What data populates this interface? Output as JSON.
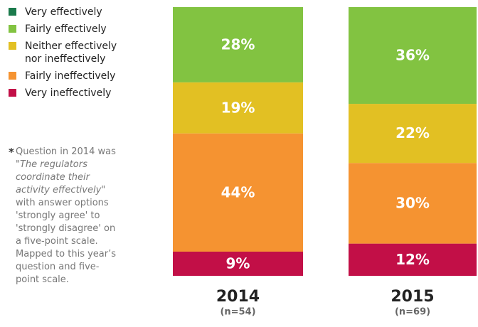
{
  "chart_data": {
    "type": "stacked_bar",
    "categories": [
      "2014",
      "2015"
    ],
    "category_notes": [
      "(n=54)",
      "(n=69)"
    ],
    "ylim": [
      0,
      100
    ],
    "series": [
      {
        "name": "Very effectively",
        "color": "#1b7a4c",
        "values": [
          0,
          0
        ]
      },
      {
        "name": "Fairly effectively",
        "color": "#82c341",
        "values": [
          28,
          36
        ],
        "value_labels": [
          "28%",
          "36%"
        ]
      },
      {
        "name": "Neither effectively nor ineffectively",
        "color": "#e2c023",
        "values": [
          19,
          22
        ],
        "value_labels": [
          "19%",
          "22%"
        ]
      },
      {
        "name": "Fairly ineffectively",
        "color": "#f59331",
        "values": [
          44,
          30
        ],
        "value_labels": [
          "44%",
          "30%"
        ]
      },
      {
        "name": "Very ineffectively",
        "color": "#c20f47",
        "values": [
          9,
          12
        ],
        "value_labels": [
          "9%",
          "12%"
        ]
      }
    ],
    "note": {
      "marker": "*",
      "parts": [
        "Question in 2014 was \"",
        "The regulators coordinate their activity effectively",
        "\" with answer options 'strongly agree' to 'strongly disagree' on a five-point scale. Mapped to this year’s question and five-point scale."
      ]
    }
  }
}
